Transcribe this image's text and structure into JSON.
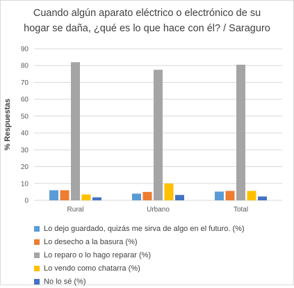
{
  "chart_data": {
    "type": "bar",
    "title_lines": [
      "Cuando algún aparato eléctrico o electrónico de su",
      "hogar se daña, ¿qué es lo que hace con él? / Saraguro"
    ],
    "ylabel": "% Respuestas",
    "xlabel": "",
    "ylim": [
      0,
      90
    ],
    "y_ticks": [
      0,
      10,
      20,
      30,
      40,
      50,
      60,
      70,
      80,
      90
    ],
    "grid": true,
    "legend_position": "bottom",
    "categories": [
      "Rural",
      "Urbano",
      "Total"
    ],
    "series": [
      {
        "name": "Lo dejo guardado, quizás me sirva de algo en el futuro. (%)",
        "color": "#5b9bd5",
        "values": [
          6,
          4,
          5.2
        ]
      },
      {
        "name": "Lo desecho a la basura (%)",
        "color": "#ed7d31",
        "values": [
          6,
          5,
          5.6
        ]
      },
      {
        "name": "Lo reparo o lo hago reparar (%)",
        "color": "#a5a5a5",
        "values": [
          82,
          77.5,
          80.5
        ]
      },
      {
        "name": "Lo vendo como chatarra (%)",
        "color": "#ffc000",
        "values": [
          3.5,
          10,
          5.6
        ]
      },
      {
        "name": "No lo sé (%)",
        "color": "#4472c4",
        "values": [
          1.8,
          3.2,
          2.3
        ]
      }
    ]
  }
}
